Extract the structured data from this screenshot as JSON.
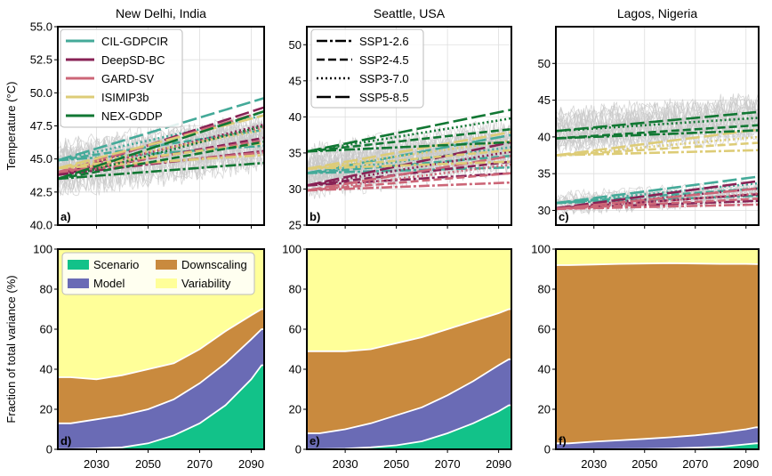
{
  "figure": {
    "xlim": [
      2015,
      2095
    ],
    "x_ticks": [
      2030,
      2050,
      2070,
      2090
    ],
    "top_ylabel": "Temperature (°C)",
    "bottom_ylabel": "Fraction of total variance (%)"
  },
  "colors": {
    "CIL-GDPCIR": "#44aa99",
    "DeepSD-BC": "#882255",
    "GARD-SV": "#cc6677",
    "ISIMIP3b": "#ddcc77",
    "NEX-GDDP": "#117733",
    "Scenario": "#12c289",
    "Model": "#6a6bb5",
    "Downscaling": "#c98a3e",
    "Variability": "#ffff99",
    "ensemble_grey": "#c8c8c8"
  },
  "legends": {
    "models": [
      "CIL-GDPCIR",
      "DeepSD-BC",
      "GARD-SV",
      "ISIMIP3b",
      "NEX-GDDP"
    ],
    "scenarios": [
      {
        "name": "SSP1-2.6",
        "dash": "12,3,3,3"
      },
      {
        "name": "SSP2-4.5",
        "dash": "9,4"
      },
      {
        "name": "SSP3-7.0",
        "dash": "2,3"
      },
      {
        "name": "SSP5-8.5",
        "dash": "16,5"
      }
    ],
    "components": [
      "Scenario",
      "Downscaling",
      "Model",
      "Variability"
    ]
  },
  "chart_data": [
    {
      "type": "line",
      "panel": "a)",
      "title": "New Delhi, India",
      "ylabel": "Temperature (°C)",
      "ylim": [
        40,
        55
      ],
      "yticks": [
        40.0,
        42.5,
        45.0,
        47.5,
        50.0,
        52.5,
        55.0
      ],
      "noise": {
        "base": 44.2,
        "trend": 2.0,
        "spread": 2.6,
        "count": 30
      },
      "series": [
        {
          "model": "CIL-GDPCIR",
          "scenario": "SSP5-8.5",
          "start": 44.9,
          "end": 49.6
        },
        {
          "model": "CIL-GDPCIR",
          "scenario": "SSP3-7.0",
          "start": 44.9,
          "end": 48.3
        },
        {
          "model": "CIL-GDPCIR",
          "scenario": "SSP2-4.5",
          "start": 44.9,
          "end": 47.2
        },
        {
          "model": "CIL-GDPCIR",
          "scenario": "SSP1-2.6",
          "start": 44.9,
          "end": 46.0
        },
        {
          "model": "DeepSD-BC",
          "scenario": "SSP5-8.5",
          "start": 43.8,
          "end": 48.9
        },
        {
          "model": "DeepSD-BC",
          "scenario": "SSP3-7.0",
          "start": 43.8,
          "end": 47.6
        },
        {
          "model": "DeepSD-BC",
          "scenario": "SSP2-4.5",
          "start": 43.8,
          "end": 46.6
        },
        {
          "model": "DeepSD-BC",
          "scenario": "SSP1-2.6",
          "start": 43.8,
          "end": 45.6
        },
        {
          "model": "GARD-SV",
          "scenario": "SSP5-8.5",
          "start": 44.0,
          "end": 48.6
        },
        {
          "model": "GARD-SV",
          "scenario": "SSP3-7.0",
          "start": 44.0,
          "end": 47.4
        },
        {
          "model": "GARD-SV",
          "scenario": "SSP2-4.5",
          "start": 44.0,
          "end": 46.4
        },
        {
          "model": "GARD-SV",
          "scenario": "SSP1-2.6",
          "start": 44.0,
          "end": 45.5
        },
        {
          "model": "ISIMIP3b",
          "scenario": "SSP5-8.5",
          "start": 44.3,
          "end": 48.3
        },
        {
          "model": "ISIMIP3b",
          "scenario": "SSP3-7.0",
          "start": 44.3,
          "end": 47.2
        },
        {
          "model": "ISIMIP3b",
          "scenario": "SSP2-4.5",
          "start": 44.3,
          "end": 46.2
        },
        {
          "model": "ISIMIP3b",
          "scenario": "SSP1-2.6",
          "start": 44.3,
          "end": 45.3
        },
        {
          "model": "NEX-GDDP",
          "scenario": "SSP5-8.5",
          "start": 43.5,
          "end": 48.6
        },
        {
          "model": "NEX-GDDP",
          "scenario": "SSP3-7.0",
          "start": 43.5,
          "end": 47.5
        },
        {
          "model": "NEX-GDDP",
          "scenario": "SSP2-4.5",
          "start": 43.5,
          "end": 46.3
        },
        {
          "model": "NEX-GDDP",
          "scenario": "SSP1-2.6",
          "start": 43.5,
          "end": 44.7
        }
      ]
    },
    {
      "type": "line",
      "panel": "b)",
      "title": "Seattle, USA",
      "ylabel": "",
      "ylim": [
        25,
        52.5
      ],
      "yticks": [
        25,
        30,
        35,
        40,
        45,
        50
      ],
      "noise": {
        "base": 32.5,
        "trend": 3.5,
        "spread": 4.5,
        "count": 30
      },
      "series": [
        {
          "model": "CIL-GDPCIR",
          "scenario": "SSP5-8.5",
          "start": 32.2,
          "end": 37.5
        },
        {
          "model": "CIL-GDPCIR",
          "scenario": "SSP3-7.0",
          "start": 32.2,
          "end": 35.8
        },
        {
          "model": "CIL-GDPCIR",
          "scenario": "SSP2-4.5",
          "start": 32.2,
          "end": 34.6
        },
        {
          "model": "CIL-GDPCIR",
          "scenario": "SSP1-2.6",
          "start": 32.2,
          "end": 33.0
        },
        {
          "model": "DeepSD-BC",
          "scenario": "SSP5-8.5",
          "start": 30.5,
          "end": 36.5
        },
        {
          "model": "DeepSD-BC",
          "scenario": "SSP3-7.0",
          "start": 30.5,
          "end": 35.2
        },
        {
          "model": "DeepSD-BC",
          "scenario": "SSP2-4.5",
          "start": 30.5,
          "end": 33.8
        },
        {
          "model": "DeepSD-BC",
          "scenario": "SSP1-2.6",
          "start": 30.5,
          "end": 32.2
        },
        {
          "model": "GARD-SV",
          "scenario": "SSP5-8.5",
          "start": 29.8,
          "end": 34.6
        },
        {
          "model": "GARD-SV",
          "scenario": "SSP3-7.0",
          "start": 29.8,
          "end": 33.4
        },
        {
          "model": "GARD-SV",
          "scenario": "SSP2-4.5",
          "start": 29.8,
          "end": 32.2
        },
        {
          "model": "GARD-SV",
          "scenario": "SSP1-2.6",
          "start": 29.8,
          "end": 30.9
        },
        {
          "model": "ISIMIP3b",
          "scenario": "SSP5-8.5",
          "start": 32.8,
          "end": 37.9
        },
        {
          "model": "ISIMIP3b",
          "scenario": "SSP3-7.0",
          "start": 32.8,
          "end": 36.7
        },
        {
          "model": "ISIMIP3b",
          "scenario": "SSP2-4.5",
          "start": 32.8,
          "end": 35.4
        },
        {
          "model": "ISIMIP3b",
          "scenario": "SSP1-2.6",
          "start": 32.8,
          "end": 33.8
        },
        {
          "model": "NEX-GDDP",
          "scenario": "SSP5-8.5",
          "start": 35.2,
          "end": 41.0
        },
        {
          "model": "NEX-GDDP",
          "scenario": "SSP3-7.0",
          "start": 35.2,
          "end": 39.8
        },
        {
          "model": "NEX-GDDP",
          "scenario": "SSP2-4.5",
          "start": 35.2,
          "end": 38.3
        },
        {
          "model": "NEX-GDDP",
          "scenario": "SSP1-2.6",
          "start": 35.2,
          "end": 36.5
        }
      ]
    },
    {
      "type": "line",
      "panel": "c)",
      "title": "Lagos, Nigeria",
      "ylabel": "",
      "ylim": [
        28,
        55
      ],
      "yticks": [
        30,
        35,
        40,
        45,
        50
      ],
      "noise": {
        "base": 40.5,
        "trend": 2.0,
        "spread": 4.0,
        "count": 24
      },
      "noise_low": {
        "base": 31.0,
        "trend": 1.5,
        "spread": 2.2,
        "count": 14
      },
      "series": [
        {
          "model": "CIL-GDPCIR",
          "scenario": "SSP5-8.5",
          "start": 31.0,
          "end": 34.6
        },
        {
          "model": "CIL-GDPCIR",
          "scenario": "SSP3-7.0",
          "start": 31.0,
          "end": 33.7
        },
        {
          "model": "CIL-GDPCIR",
          "scenario": "SSP2-4.5",
          "start": 31.0,
          "end": 33.0
        },
        {
          "model": "CIL-GDPCIR",
          "scenario": "SSP1-2.6",
          "start": 31.0,
          "end": 32.0
        },
        {
          "model": "DeepSD-BC",
          "scenario": "SSP5-8.5",
          "start": 30.3,
          "end": 34.0
        },
        {
          "model": "DeepSD-BC",
          "scenario": "SSP3-7.0",
          "start": 30.3,
          "end": 33.0
        },
        {
          "model": "DeepSD-BC",
          "scenario": "SSP2-4.5",
          "start": 30.3,
          "end": 32.2
        },
        {
          "model": "DeepSD-BC",
          "scenario": "SSP1-2.6",
          "start": 30.3,
          "end": 31.3
        },
        {
          "model": "GARD-SV",
          "scenario": "SSP5-8.5",
          "start": 30.2,
          "end": 33.0
        },
        {
          "model": "GARD-SV",
          "scenario": "SSP3-7.0",
          "start": 30.2,
          "end": 32.3
        },
        {
          "model": "GARD-SV",
          "scenario": "SSP2-4.5",
          "start": 30.2,
          "end": 31.6
        },
        {
          "model": "GARD-SV",
          "scenario": "SSP1-2.6",
          "start": 30.2,
          "end": 30.8
        },
        {
          "model": "ISIMIP3b",
          "scenario": "SSP5-8.5",
          "start": 37.5,
          "end": 41.0
        },
        {
          "model": "ISIMIP3b",
          "scenario": "SSP3-7.0",
          "start": 37.5,
          "end": 40.0
        },
        {
          "model": "ISIMIP3b",
          "scenario": "SSP2-4.5",
          "start": 37.5,
          "end": 39.2
        },
        {
          "model": "ISIMIP3b",
          "scenario": "SSP1-2.6",
          "start": 37.5,
          "end": 38.2
        },
        {
          "model": "NEX-GDDP",
          "scenario": "SSP5-8.5",
          "start": 40.8,
          "end": 43.4
        },
        {
          "model": "NEX-GDDP",
          "scenario": "SSP3-7.0",
          "start": 40.8,
          "end": 42.6
        },
        {
          "model": "NEX-GDDP",
          "scenario": "SSP2-4.5",
          "start": 39.8,
          "end": 41.6
        },
        {
          "model": "NEX-GDDP",
          "scenario": "SSP1-2.6",
          "start": 39.8,
          "end": 40.9
        }
      ]
    },
    {
      "type": "area",
      "panel": "d)",
      "stacked": true,
      "ylabel": "Fraction of total variance (%)",
      "ylim": [
        0,
        100
      ],
      "yticks": [
        0,
        20,
        40,
        60,
        80,
        100
      ],
      "x": [
        2020,
        2030,
        2040,
        2050,
        2060,
        2070,
        2080,
        2090,
        2094
      ],
      "cumulative": {
        "Scenario": [
          0.2,
          0.5,
          1,
          3,
          7,
          13,
          22,
          35,
          42
        ],
        "Model": [
          13,
          15,
          17,
          20,
          25,
          33,
          43,
          55,
          60
        ],
        "Downscaling": [
          36,
          35,
          37,
          40,
          43,
          50,
          59,
          67,
          70
        ],
        "Variability": [
          100,
          100,
          100,
          100,
          100,
          100,
          100,
          100,
          100
        ]
      }
    },
    {
      "type": "area",
      "panel": "e)",
      "stacked": true,
      "ylabel": "",
      "ylim": [
        0,
        100
      ],
      "yticks": [
        0,
        20,
        40,
        60,
        80,
        100
      ],
      "x": [
        2020,
        2030,
        2040,
        2050,
        2060,
        2070,
        2080,
        2090,
        2094
      ],
      "cumulative": {
        "Scenario": [
          0.1,
          0.3,
          1,
          2,
          4,
          8,
          13,
          19,
          22
        ],
        "Model": [
          8,
          10,
          13,
          17,
          21,
          27,
          34,
          42,
          45
        ],
        "Downscaling": [
          49,
          49,
          50,
          53,
          56,
          60,
          64,
          68,
          70
        ],
        "Variability": [
          100,
          100,
          100,
          100,
          100,
          100,
          100,
          100,
          100
        ]
      }
    },
    {
      "type": "area",
      "panel": "f)",
      "stacked": true,
      "ylabel": "",
      "ylim": [
        0,
        100
      ],
      "yticks": [
        0,
        20,
        40,
        60,
        80,
        100
      ],
      "x": [
        2020,
        2030,
        2040,
        2050,
        2060,
        2070,
        2080,
        2090,
        2094
      ],
      "cumulative": {
        "Scenario": [
          0,
          0,
          0.1,
          0.2,
          0.4,
          0.8,
          1.3,
          2.5,
          3
        ],
        "Model": [
          3,
          3.8,
          4.5,
          5.2,
          6,
          7,
          8.3,
          10,
          11
        ],
        "Downscaling": [
          92,
          92.3,
          92.6,
          92.8,
          93,
          92.8,
          92.6,
          92.6,
          92.5
        ],
        "Variability": [
          100,
          100,
          100,
          100,
          100,
          100,
          100,
          100,
          100
        ]
      }
    }
  ]
}
